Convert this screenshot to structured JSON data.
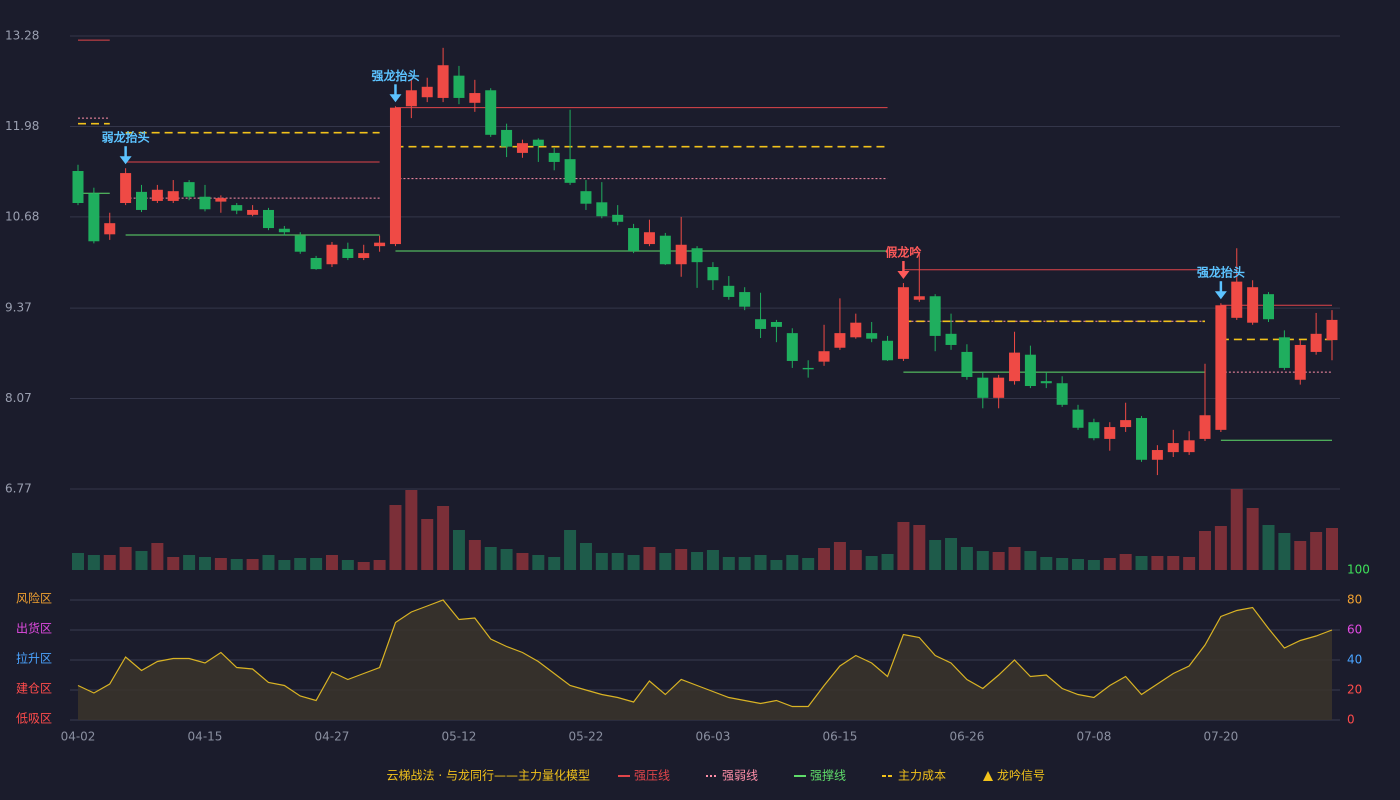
{
  "chart_data": [
    {
      "type": "candlestick",
      "ylim": [
        6.77,
        13.28
      ],
      "yticks": [
        6.77,
        8.07,
        9.37,
        10.68,
        11.98,
        13.28
      ],
      "grid": true,
      "up_color": "#ef4a45",
      "down_color": "#1fae5e",
      "categories": [
        "04-02",
        null,
        null,
        null,
        null,
        null,
        null,
        null,
        "04-15",
        null,
        null,
        null,
        null,
        null,
        null,
        null,
        "04-27",
        null,
        null,
        null,
        null,
        null,
        null,
        null,
        "05-12",
        null,
        null,
        null,
        null,
        null,
        null,
        null,
        "05-22",
        null,
        null,
        null,
        null,
        null,
        null,
        null,
        "06-03",
        null,
        null,
        null,
        null,
        null,
        null,
        null,
        "06-15",
        null,
        null,
        null,
        null,
        null,
        null,
        null,
        "06-26",
        null,
        null,
        null,
        null,
        null,
        null,
        null,
        "07-08",
        null,
        null,
        null,
        null,
        null,
        null,
        null,
        "07-20",
        null,
        null,
        null,
        null,
        null,
        null,
        null
      ],
      "open": [
        11.34,
        11.02,
        10.43,
        10.88,
        11.04,
        10.91,
        10.91,
        11.18,
        10.97,
        10.9,
        10.85,
        10.71,
        10.78,
        10.51,
        10.41,
        10.09,
        10.0,
        10.22,
        10.09,
        10.26,
        10.29,
        12.27,
        12.4,
        12.39,
        12.71,
        12.32,
        12.5,
        11.93,
        11.6,
        11.79,
        11.6,
        11.51,
        11.05,
        10.89,
        10.71,
        10.52,
        10.29,
        10.41,
        10.0,
        10.23,
        9.96,
        9.69,
        9.6,
        9.21,
        9.17,
        9.01,
        8.51,
        8.6,
        8.8,
        8.95,
        9.01,
        8.9,
        8.64,
        9.49,
        9.54,
        9.0,
        8.74,
        8.37,
        8.08,
        8.32,
        8.7,
        8.32,
        8.29,
        7.91,
        7.73,
        7.49,
        7.66,
        7.79,
        7.19,
        7.3,
        7.3,
        7.49,
        7.62,
        9.23,
        9.16,
        9.57,
        8.95,
        8.34,
        8.74,
        8.91
      ],
      "high": [
        11.43,
        11.1,
        10.74,
        11.38,
        11.14,
        11.14,
        11.21,
        11.21,
        11.14,
        10.99,
        10.88,
        10.85,
        10.81,
        10.55,
        10.46,
        10.12,
        10.32,
        10.31,
        10.28,
        10.41,
        12.27,
        12.65,
        12.68,
        13.11,
        12.85,
        12.65,
        12.53,
        12.02,
        11.79,
        11.81,
        11.67,
        12.22,
        11.21,
        11.18,
        10.85,
        10.58,
        10.64,
        10.45,
        10.68,
        10.26,
        10.03,
        9.83,
        9.67,
        9.59,
        9.2,
        9.08,
        8.62,
        9.13,
        9.51,
        9.29,
        9.17,
        8.97,
        9.73,
        10.18,
        9.57,
        9.29,
        8.85,
        8.45,
        8.41,
        9.03,
        8.83,
        8.45,
        8.39,
        7.98,
        7.78,
        7.73,
        8.01,
        7.82,
        7.4,
        7.62,
        7.6,
        8.57,
        9.44,
        10.23,
        9.77,
        9.6,
        9.05,
        8.91,
        9.3,
        9.34
      ],
      "low": [
        10.85,
        10.3,
        10.35,
        10.85,
        10.75,
        10.88,
        10.88,
        10.92,
        10.76,
        10.74,
        10.72,
        10.69,
        10.49,
        10.41,
        10.15,
        9.92,
        9.96,
        10.06,
        10.06,
        10.18,
        10.26,
        12.1,
        12.33,
        12.33,
        12.3,
        12.19,
        11.83,
        11.54,
        11.53,
        11.47,
        11.35,
        11.14,
        10.78,
        10.66,
        10.56,
        10.16,
        10.26,
        9.99,
        9.82,
        9.66,
        9.63,
        9.49,
        9.34,
        8.94,
        8.88,
        8.51,
        8.37,
        8.54,
        8.77,
        8.93,
        8.88,
        8.61,
        8.61,
        9.46,
        8.75,
        8.77,
        8.34,
        7.93,
        7.93,
        8.27,
        8.22,
        8.22,
        7.95,
        7.62,
        7.47,
        7.32,
        7.59,
        7.16,
        6.97,
        7.23,
        7.26,
        7.46,
        7.59,
        9.2,
        9.13,
        9.17,
        8.48,
        8.27,
        8.7,
        8.62
      ],
      "close": [
        10.88,
        10.33,
        10.59,
        11.31,
        10.78,
        11.07,
        11.05,
        10.97,
        10.79,
        10.95,
        10.77,
        10.78,
        10.52,
        10.46,
        10.18,
        9.93,
        10.28,
        10.09,
        10.16,
        10.31,
        12.25,
        12.5,
        12.55,
        12.86,
        12.39,
        12.46,
        11.86,
        11.69,
        11.74,
        11.7,
        11.47,
        11.17,
        10.87,
        10.69,
        10.61,
        10.19,
        10.46,
        10.0,
        10.28,
        10.03,
        9.77,
        9.53,
        9.39,
        9.07,
        9.1,
        8.61,
        8.49,
        8.75,
        9.01,
        9.16,
        8.93,
        8.62,
        9.67,
        9.54,
        8.97,
        8.84,
        8.38,
        8.08,
        8.37,
        8.73,
        8.25,
        8.29,
        7.98,
        7.65,
        7.5,
        7.66,
        7.76,
        7.19,
        7.33,
        7.43,
        7.47,
        7.83,
        9.41,
        9.75,
        9.67,
        9.21,
        8.51,
        8.84,
        9.0,
        9.2
      ],
      "series": [
        {
          "name": "强压线",
          "color": "#e0454a",
          "style": "solid",
          "segments": [
            {
              "from": 0,
              "to": 2,
              "value": 13.22
            },
            {
              "from": 3,
              "to": 19,
              "value": 11.47
            },
            {
              "from": 20,
              "to": 51,
              "value": 12.25
            },
            {
              "from": 52,
              "to": 71,
              "value": 9.92
            },
            {
              "from": 72,
              "to": 79,
              "value": 9.41
            }
          ]
        },
        {
          "name": "强弱线",
          "color": "#ff8fa8",
          "style": "dotted",
          "segments": [
            {
              "from": 0,
              "to": 2,
              "value": 12.1
            },
            {
              "from": 3,
              "to": 19,
              "value": 10.95
            },
            {
              "from": 20,
              "to": 51,
              "value": 11.23
            },
            {
              "from": 52,
              "to": 71,
              "value": 9.18
            },
            {
              "from": 72,
              "to": 79,
              "value": 8.45
            }
          ]
        },
        {
          "name": "强撑线",
          "color": "#5fdc6a",
          "style": "solid",
          "segments": [
            {
              "from": 0,
              "to": 2,
              "value": 11.02
            },
            {
              "from": 3,
              "to": 19,
              "value": 10.42
            },
            {
              "from": 20,
              "to": 51,
              "value": 10.19
            },
            {
              "from": 52,
              "to": 71,
              "value": 8.45
            },
            {
              "from": 72,
              "to": 79,
              "value": 7.47
            }
          ]
        },
        {
          "name": "主力成本",
          "color": "#f2c21b",
          "style": "dashed",
          "segments": [
            {
              "from": 0,
              "to": 2,
              "value": 12.02
            },
            {
              "from": 3,
              "to": 19,
              "value": 11.89
            },
            {
              "from": 20,
              "to": 51,
              "value": 11.69
            },
            {
              "from": 52,
              "to": 71,
              "value": 9.18
            },
            {
              "from": 72,
              "to": 79,
              "value": 8.92
            }
          ]
        }
      ],
      "signals": {
        "name": "龙吟信号",
        "color": "#f2c21b",
        "marker": "triangle",
        "points": [
          {
            "index": 3,
            "label": "弱龙抬头",
            "color": "#5cc3ff"
          },
          {
            "index": 20,
            "label": "强龙抬头",
            "color": "#5cc3ff"
          },
          {
            "index": 52,
            "label": "假龙吟",
            "color": "#ff5a5a"
          },
          {
            "index": 72,
            "label": "强龙抬头",
            "color": "#5cc3ff"
          }
        ]
      },
      "legend_title": "云梯战法 · 与龙同行——主力量化模型"
    },
    {
      "type": "bar",
      "up_color": "#7b2f38",
      "down_color": "#1e5b4a",
      "values": [
        17,
        15,
        15,
        23,
        19,
        27,
        13,
        15,
        13,
        12,
        11,
        11,
        15,
        10,
        12,
        12,
        15,
        10,
        8,
        10,
        65,
        80,
        51,
        64,
        40,
        30,
        23,
        21,
        17,
        15,
        13,
        40,
        27,
        17,
        17,
        15,
        23,
        17,
        21,
        18,
        20,
        13,
        13,
        15,
        10,
        15,
        12,
        22,
        28,
        20,
        14,
        16,
        48,
        45,
        30,
        32,
        23,
        19,
        18,
        23,
        19,
        13,
        12,
        11,
        10,
        12,
        16,
        14,
        14,
        14,
        13,
        39,
        44,
        81,
        62,
        45,
        37,
        29,
        38,
        42
      ]
    },
    {
      "type": "line",
      "color": "#d9b324",
      "fill": "#3a342c",
      "ylim": [
        0,
        100
      ],
      "yticks": [
        0,
        20,
        40,
        60,
        80,
        100
      ],
      "ytick_colors": [
        "#ff4b4b",
        "#ff4b4b",
        "#4aa3ff",
        "#e04ae0",
        "#f0a030",
        "#3ee05a"
      ],
      "zones": [
        {
          "value": 0,
          "label": "低吸区",
          "color": "#ff4b4b"
        },
        {
          "value": 20,
          "label": "建仓区",
          "color": "#ff4b4b"
        },
        {
          "value": 40,
          "label": "拉升区",
          "color": "#4aa3ff"
        },
        {
          "value": 60,
          "label": "出货区",
          "color": "#e04ae0"
        },
        {
          "value": 80,
          "label": "风险区",
          "color": "#f0a030"
        }
      ],
      "values": [
        23,
        18,
        24,
        42,
        33,
        39,
        41,
        41,
        38,
        45,
        35,
        34,
        25,
        23,
        16,
        13,
        32,
        27,
        31,
        35,
        65,
        72,
        76,
        80,
        67,
        68,
        54,
        49,
        45,
        39,
        31,
        23,
        20,
        17,
        15,
        12,
        26,
        17,
        27,
        23,
        19,
        15,
        13,
        11,
        13,
        9,
        9,
        23,
        36,
        43,
        38,
        29,
        57,
        55,
        43,
        38,
        27,
        21,
        30,
        40,
        29,
        30,
        21,
        17,
        15,
        23,
        29,
        17,
        24,
        31,
        36,
        50,
        69,
        73,
        75,
        61,
        48,
        53,
        56,
        60
      ]
    }
  ]
}
